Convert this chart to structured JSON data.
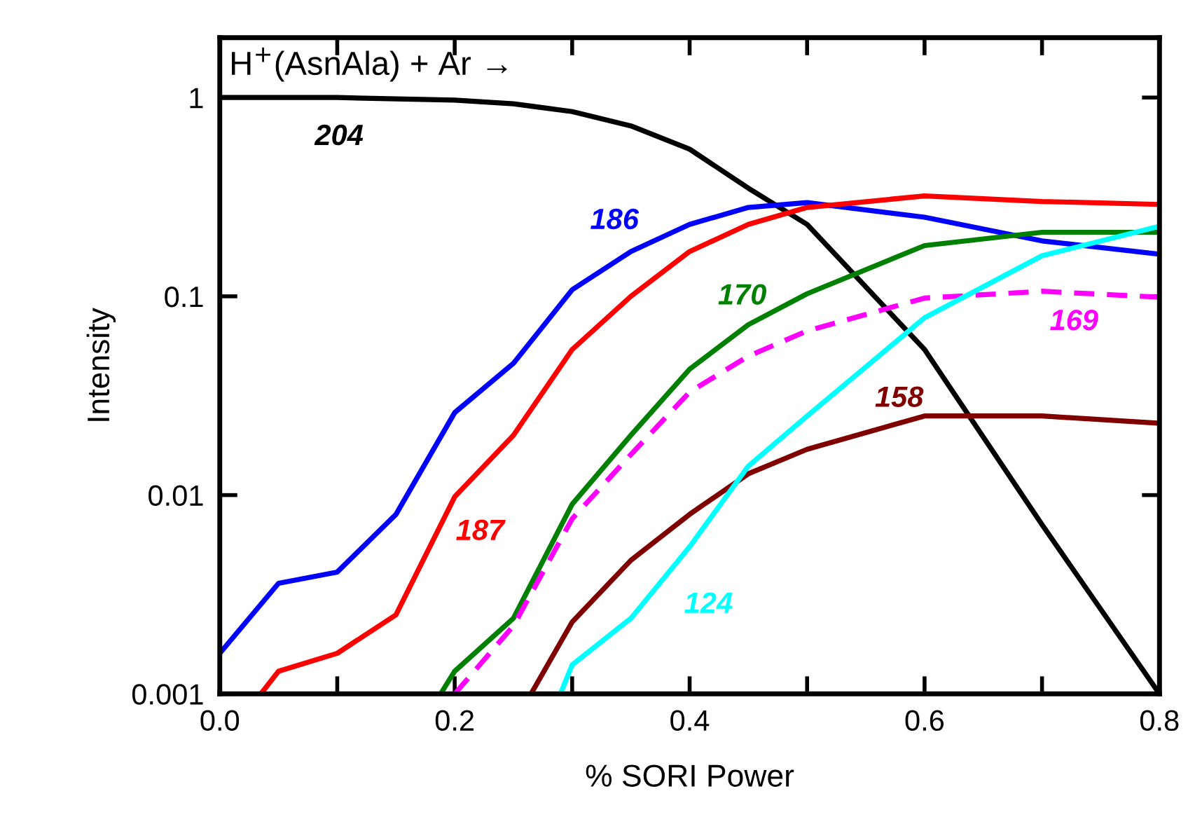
{
  "chart_data": {
    "type": "line",
    "title": "H$^{+}$(AsnAla) + Ar →",
    "xlabel": "% SORI Power",
    "ylabel": "Intensity",
    "log": "y",
    "grid": false,
    "legend": false,
    "xlim": [
      0,
      0.8
    ],
    "xticks": [
      {
        "value": 0,
        "label": "0.0"
      },
      {
        "value": 0.1,
        "label": null
      },
      0.2,
      {
        "value": 0.3,
        "label": null
      },
      0.4,
      {
        "value": 0.5,
        "label": null
      },
      0.6,
      {
        "value": 0.7,
        "label": null
      },
      0.8
    ],
    "ylim": [
      0.001,
      2
    ],
    "yticks": [
      0.001,
      0.01,
      0.1,
      1
    ],
    "series": [
      {
        "name": "204",
        "color": "#000000",
        "x": [
          0,
          0.1,
          0.2,
          0.25,
          0.3,
          0.35,
          0.4,
          0.45,
          0.5,
          0.6,
          0.7,
          0.8
        ],
        "values": [
          1,
          1,
          0.97,
          0.93,
          0.85,
          0.72,
          0.55,
          0.35,
          0.23,
          0.054,
          0.0071,
          0.001
        ]
      },
      {
        "name": "186",
        "color": "#0000ff",
        "x": [
          0,
          0.05,
          0.1,
          0.15,
          0.2,
          0.25,
          0.3,
          0.35,
          0.4,
          0.45,
          0.5,
          0.6,
          0.7,
          0.8
        ],
        "values": [
          0.0016,
          0.0036,
          0.0041,
          0.008,
          0.026,
          0.046,
          0.108,
          0.168,
          0.23,
          0.28,
          0.296,
          0.25,
          0.19,
          0.163
        ]
      },
      {
        "name": "187",
        "color": "#ff0000",
        "x": [
          0.035,
          0.05,
          0.1,
          0.15,
          0.2,
          0.25,
          0.3,
          0.35,
          0.4,
          0.45,
          0.5,
          0.6,
          0.7,
          0.8
        ],
        "values": [
          0.001,
          0.0013,
          0.0016,
          0.0025,
          0.0098,
          0.02,
          0.054,
          0.1,
          0.168,
          0.23,
          0.28,
          0.32,
          0.3,
          0.29
        ]
      },
      {
        "name": "170",
        "color": "#008000",
        "x": [
          0.188,
          0.2,
          0.25,
          0.3,
          0.35,
          0.4,
          0.45,
          0.5,
          0.6,
          0.7,
          0.8
        ],
        "values": [
          0.001,
          0.0013,
          0.0024,
          0.009,
          0.02,
          0.043,
          0.072,
          0.103,
          0.18,
          0.21,
          0.21
        ]
      },
      {
        "name": "169",
        "color": "#ff00ff",
        "line_style": "dashed",
        "x": [
          0.2,
          0.25,
          0.3,
          0.35,
          0.4,
          0.45,
          0.5,
          0.6,
          0.7,
          0.8
        ],
        "values": [
          0.001,
          0.0022,
          0.0076,
          0.016,
          0.033,
          0.05,
          0.067,
          0.098,
          0.106,
          0.099
        ]
      },
      {
        "name": "158",
        "color": "#800000",
        "x": [
          0.265,
          0.3,
          0.35,
          0.4,
          0.45,
          0.5,
          0.6,
          0.7,
          0.8
        ],
        "values": [
          0.001,
          0.0023,
          0.0047,
          0.008,
          0.0128,
          0.017,
          0.025,
          0.025,
          0.023
        ]
      },
      {
        "name": "124",
        "color": "#00ffff",
        "x": [
          0.29,
          0.3,
          0.35,
          0.4,
          0.45,
          0.5,
          0.6,
          0.7,
          0.8
        ],
        "values": [
          0.001,
          0.0014,
          0.0024,
          0.0055,
          0.014,
          0.025,
          0.078,
          0.16,
          0.225
        ]
      }
    ]
  }
}
